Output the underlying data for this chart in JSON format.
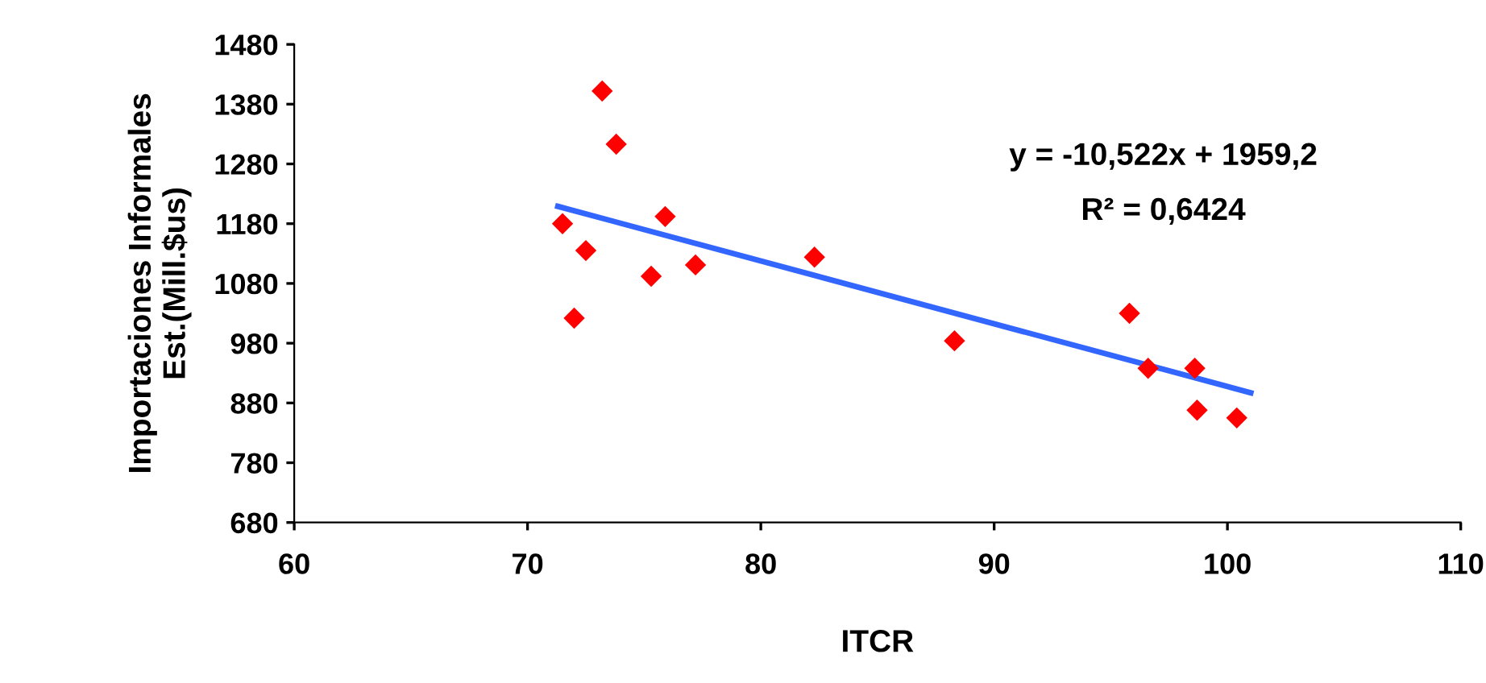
{
  "chart_data": {
    "type": "scatter",
    "xlabel": "ITCR",
    "ylabel": "Importaciones Informales\nEst.(Mill.$us)",
    "xlim": [
      60,
      110
    ],
    "xticks": [
      60,
      70,
      80,
      90,
      100,
      110
    ],
    "ylim": [
      680,
      1480
    ],
    "yticks": [
      680,
      780,
      880,
      980,
      1080,
      1180,
      1280,
      1380,
      1480
    ],
    "grid": false,
    "series": [
      {
        "marker": "diamond",
        "color": "#ff0000",
        "x": [
          71.5,
          72.0,
          72.5,
          73.2,
          73.8,
          75.3,
          75.9,
          77.2,
          82.3,
          88.3,
          95.8,
          96.6,
          98.6,
          98.7,
          100.4
        ],
        "values": [
          1180,
          1022,
          1135,
          1402,
          1313,
          1092,
          1192,
          1111,
          1124,
          984,
          1030,
          938,
          938,
          868,
          855
        ]
      },
      {
        "type": "line",
        "color": "#3366ff",
        "x": [
          71.3,
          101.0
        ],
        "values": [
          1209,
          897
        ]
      }
    ],
    "annotations": [
      "y = -10,522x + 1959,2",
      "R² = 0,6424"
    ]
  }
}
